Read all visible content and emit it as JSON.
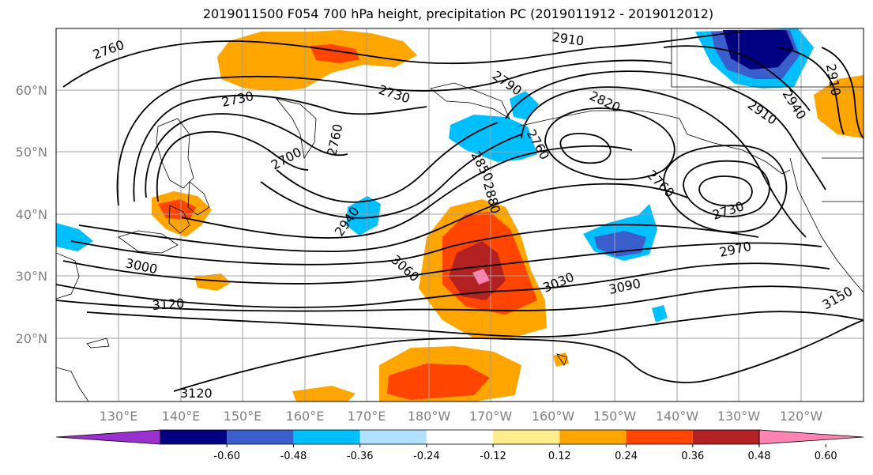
{
  "title": "2019011500 F054 700 hPa height, precipitation PC (2019011912 - 2019012012)",
  "map": {
    "lat_labels": [
      "60°N",
      "50°N",
      "40°N",
      "30°N",
      "20°N"
    ],
    "lon_labels": [
      "130°E",
      "140°E",
      "150°E",
      "160°E",
      "170°E",
      "180°W",
      "170°W",
      "160°W",
      "150°W",
      "140°W",
      "130°W",
      "120°W"
    ],
    "contour_labels": [
      "2760",
      "2730",
      "2700",
      "2760",
      "2730",
      "2790",
      "2910",
      "2820",
      "2760",
      "2850",
      "2880",
      "2940",
      "3000",
      "3060",
      "3030",
      "3090",
      "3120",
      "3120",
      "2760",
      "2730",
      "2970",
      "2910",
      "2940",
      "2910",
      "3150"
    ]
  },
  "colorbar": {
    "colors": [
      "#9b30d0",
      "#000080",
      "#3a5fcd",
      "#00bfff",
      "#b0e2ff",
      "#ffffff",
      "#ffec8b",
      "#ffa500",
      "#ff4500",
      "#b22222",
      "#ff83b0"
    ],
    "tick_labels": [
      "-0.60",
      "-0.48",
      "-0.36",
      "-0.24",
      "-0.12",
      "0.12",
      "0.24",
      "0.36",
      "0.48",
      "0.60"
    ]
  }
}
